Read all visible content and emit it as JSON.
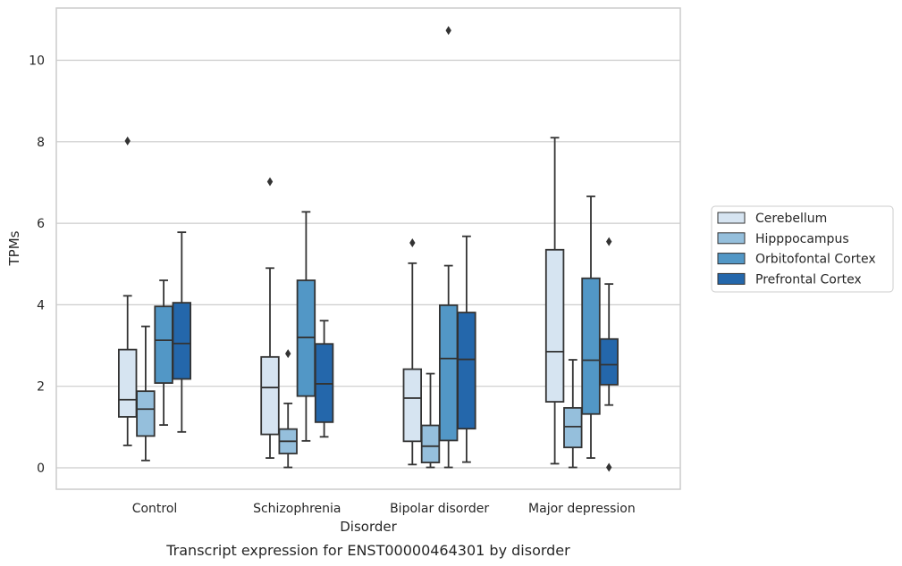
{
  "chart_data": {
    "type": "box",
    "caption": "Transcript expression for ENST00000464301 by disorder",
    "xlabel": "Disorder",
    "ylabel": "TPMs",
    "ylim": [
      -0.5,
      11.3
    ],
    "yticks": [
      0,
      2,
      4,
      6,
      8,
      10
    ],
    "grid": "horizontal",
    "legend_position": "right",
    "categories": [
      "Control",
      "Schizophrenia",
      "Bipolar disorder",
      "Major depression"
    ],
    "series": [
      {
        "name": "Cerebellum",
        "color": "#d6e4f1",
        "boxes": [
          {
            "whisker_low": 0.55,
            "q1": 1.25,
            "median": 1.67,
            "q3": 2.9,
            "whisker_high": 4.22,
            "outliers": [
              8.02
            ]
          },
          {
            "whisker_low": 0.24,
            "q1": 0.82,
            "median": 1.97,
            "q3": 2.72,
            "whisker_high": 4.9,
            "outliers": [
              7.02
            ]
          },
          {
            "whisker_low": 0.08,
            "q1": 0.65,
            "median": 1.71,
            "q3": 2.42,
            "whisker_high": 5.02,
            "outliers": [
              5.52
            ]
          },
          {
            "whisker_low": 0.1,
            "q1": 1.62,
            "median": 2.85,
            "q3": 5.35,
            "whisker_high": 8.1,
            "outliers": []
          }
        ]
      },
      {
        "name": "Hipppocampus",
        "color": "#95bfdc",
        "boxes": [
          {
            "whisker_low": 0.18,
            "q1": 0.78,
            "median": 1.44,
            "q3": 1.88,
            "whisker_high": 3.47,
            "outliers": []
          },
          {
            "whisker_low": 0.01,
            "q1": 0.35,
            "median": 0.65,
            "q3": 0.95,
            "whisker_high": 1.58,
            "outliers": [
              2.8
            ]
          },
          {
            "whisker_low": 0.01,
            "q1": 0.13,
            "median": 0.53,
            "q3": 1.04,
            "whisker_high": 2.31,
            "outliers": []
          },
          {
            "whisker_low": 0.01,
            "q1": 0.5,
            "median": 1.01,
            "q3": 1.47,
            "whisker_high": 2.65,
            "outliers": []
          }
        ]
      },
      {
        "name": "Orbitofontal Cortex",
        "color": "#5297c6",
        "boxes": [
          {
            "whisker_low": 1.05,
            "q1": 2.08,
            "median": 3.13,
            "q3": 3.96,
            "whisker_high": 4.6,
            "outliers": []
          },
          {
            "whisker_low": 0.66,
            "q1": 1.76,
            "median": 3.2,
            "q3": 4.6,
            "whisker_high": 6.28,
            "outliers": []
          },
          {
            "whisker_low": 0.01,
            "q1": 0.67,
            "median": 2.68,
            "q3": 3.99,
            "whisker_high": 4.96,
            "outliers": [
              10.73
            ]
          },
          {
            "whisker_low": 0.24,
            "q1": 1.32,
            "median": 2.64,
            "q3": 4.65,
            "whisker_high": 6.66,
            "outliers": []
          }
        ]
      },
      {
        "name": "Prefrontal Cortex",
        "color": "#2467ab",
        "boxes": [
          {
            "whisker_low": 0.88,
            "q1": 2.18,
            "median": 3.05,
            "q3": 4.05,
            "whisker_high": 5.78,
            "outliers": []
          },
          {
            "whisker_low": 0.76,
            "q1": 1.12,
            "median": 2.06,
            "q3": 3.04,
            "whisker_high": 3.61,
            "outliers": []
          },
          {
            "whisker_low": 0.14,
            "q1": 0.96,
            "median": 2.66,
            "q3": 3.81,
            "whisker_high": 5.68,
            "outliers": []
          },
          {
            "whisker_low": 1.54,
            "q1": 2.04,
            "median": 2.53,
            "q3": 3.16,
            "whisker_high": 4.51,
            "outliers": [
              5.55,
              0.01
            ]
          }
        ]
      }
    ]
  }
}
